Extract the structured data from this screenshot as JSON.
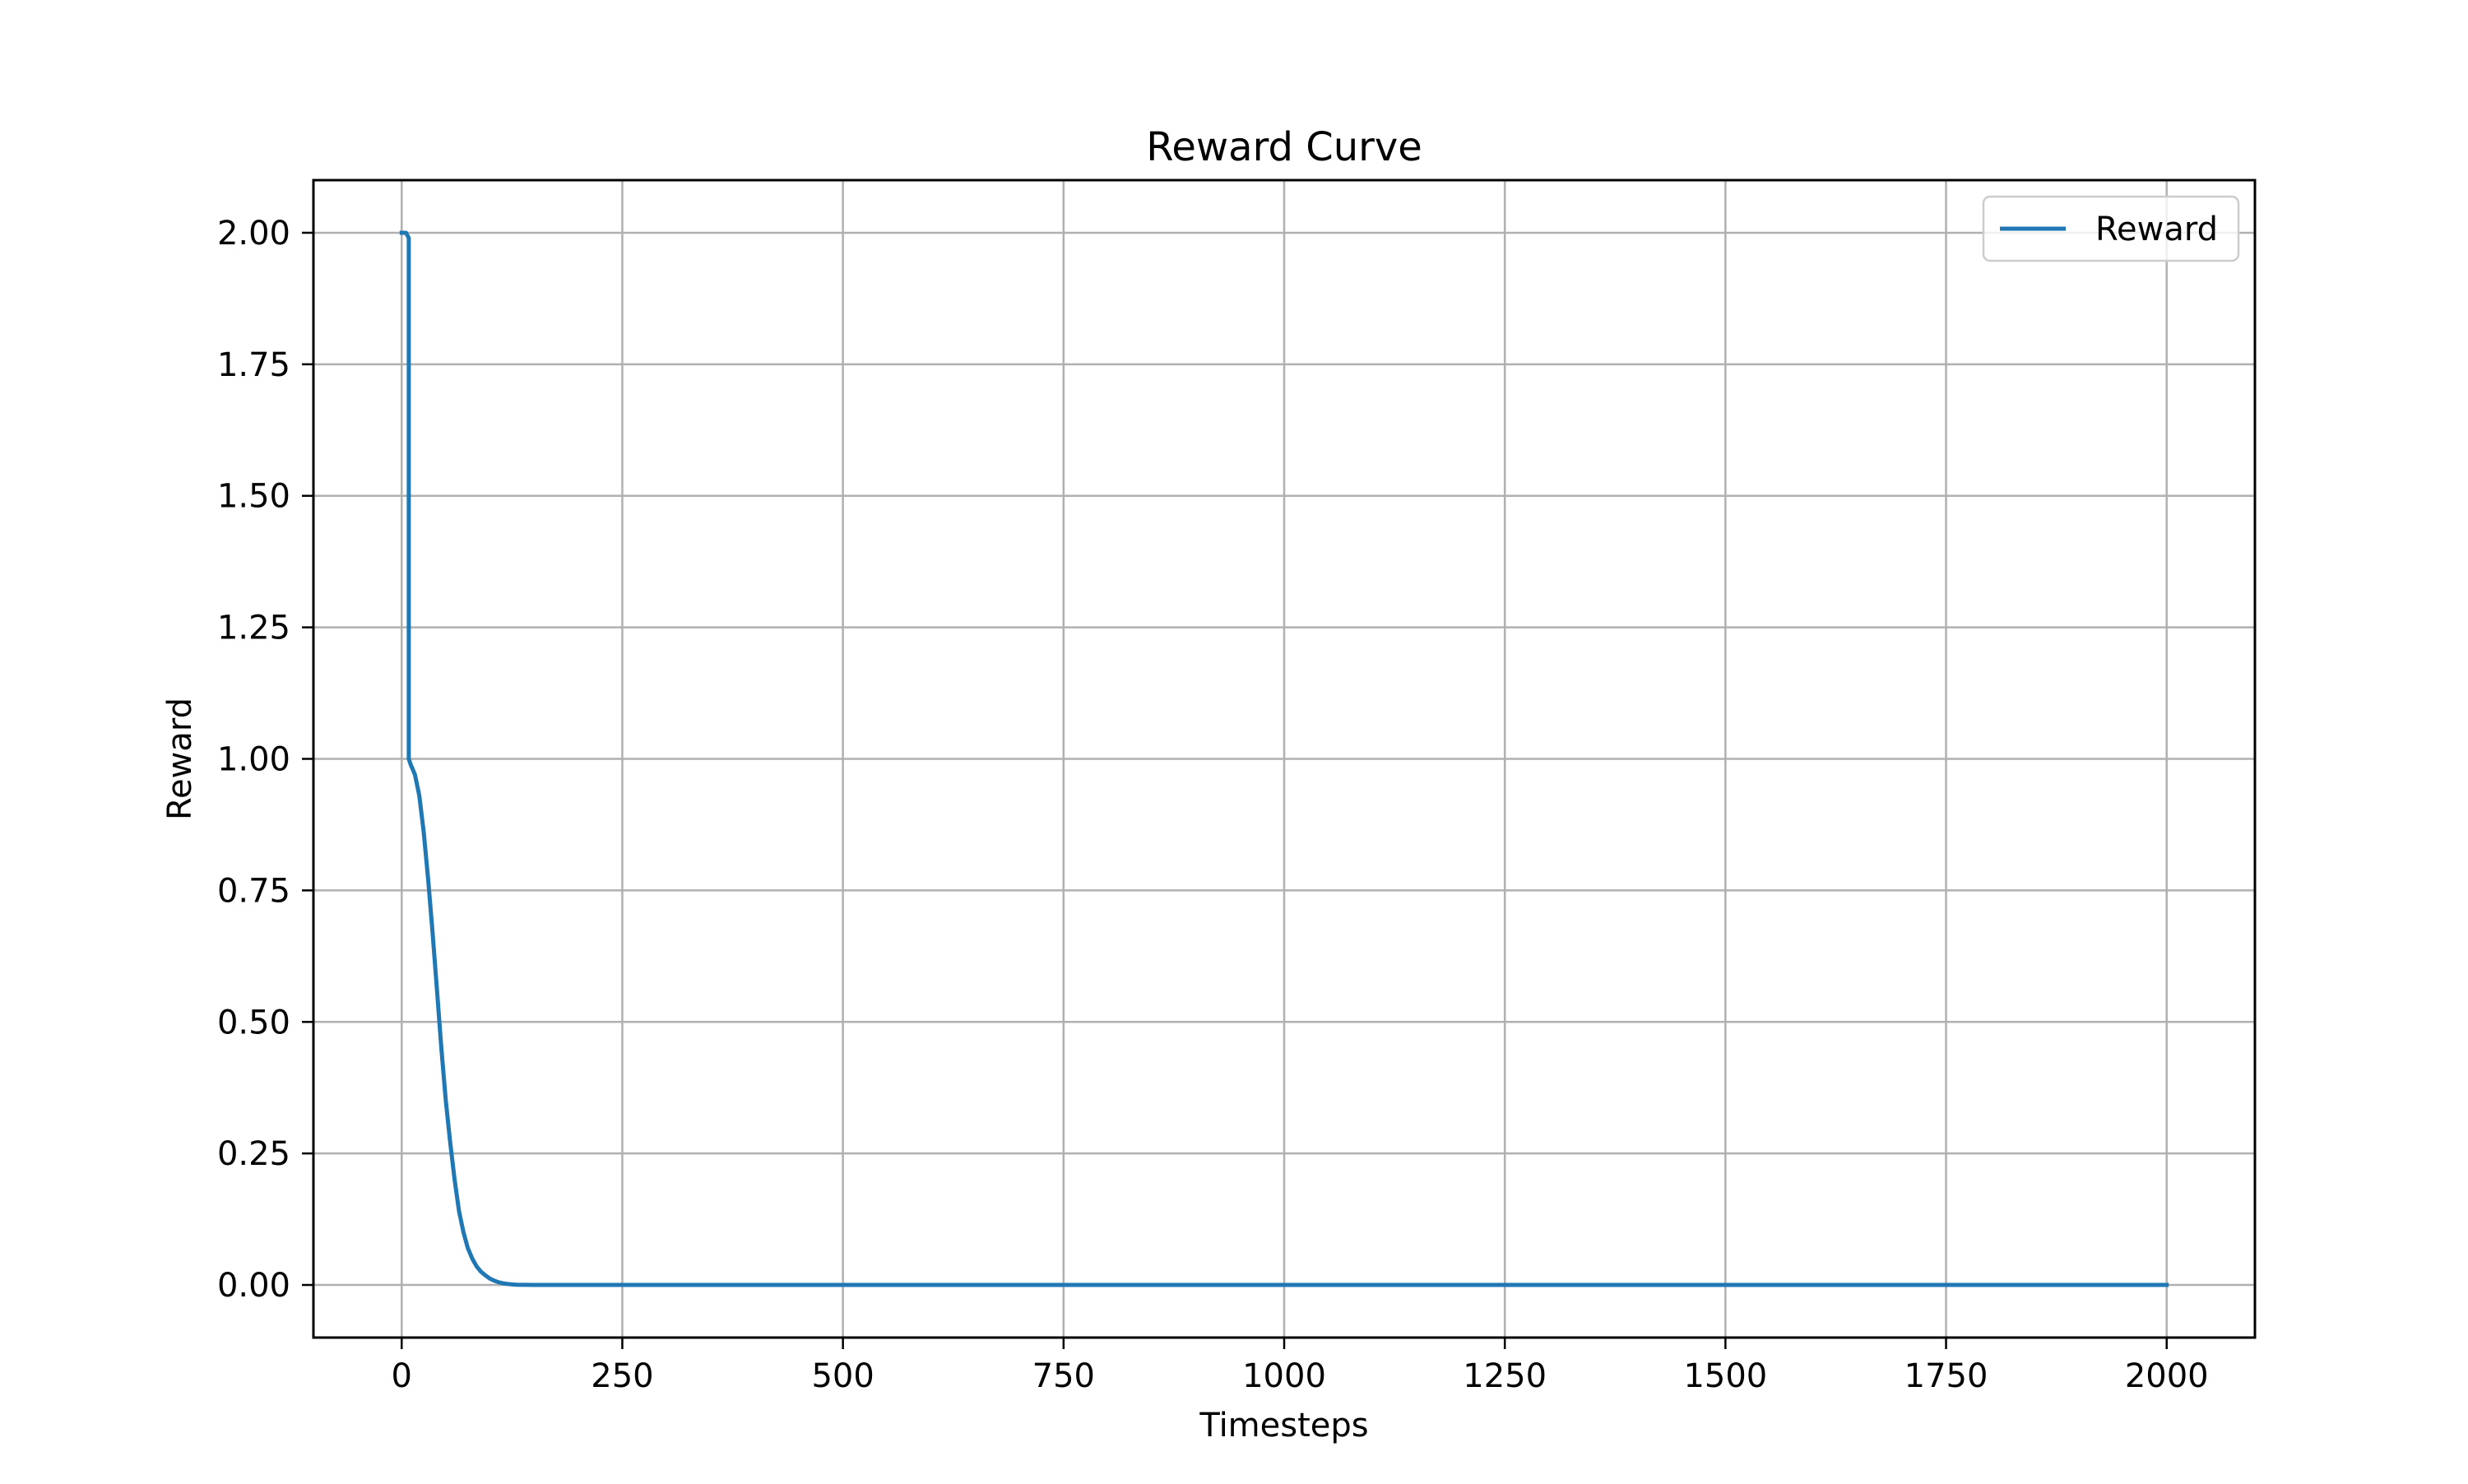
{
  "chart_data": {
    "type": "line",
    "title": "Reward Curve",
    "xlabel": "Timesteps",
    "ylabel": "Reward",
    "xlim": [
      -100,
      2100
    ],
    "ylim": [
      -0.1,
      2.1
    ],
    "xticks": [
      0,
      250,
      500,
      750,
      1000,
      1250,
      1500,
      1750,
      2000
    ],
    "xtick_labels": [
      "0",
      "250",
      "500",
      "750",
      "1000",
      "1250",
      "1500",
      "1750",
      "2000"
    ],
    "yticks": [
      0.0,
      0.25,
      0.5,
      0.75,
      1.0,
      1.25,
      1.5,
      1.75,
      2.0
    ],
    "ytick_labels": [
      "0.00",
      "0.25",
      "0.50",
      "0.75",
      "1.00",
      "1.25",
      "1.50",
      "1.75",
      "2.00"
    ],
    "grid": true,
    "legend_position": "top-right",
    "series": [
      {
        "name": "Reward",
        "color": "#1f77b4",
        "x": [
          0,
          5,
          8,
          8,
          10,
          15,
          20,
          25,
          30,
          35,
          40,
          45,
          50,
          55,
          60,
          65,
          70,
          75,
          80,
          85,
          90,
          95,
          100,
          105,
          110,
          115,
          120,
          125,
          130,
          140,
          150,
          175,
          200,
          300,
          500,
          750,
          1000,
          1250,
          1500,
          1750,
          2000
        ],
        "y": [
          2.0,
          2.0,
          1.99,
          1.0,
          0.99,
          0.97,
          0.93,
          0.86,
          0.77,
          0.67,
          0.56,
          0.45,
          0.35,
          0.27,
          0.2,
          0.14,
          0.1,
          0.07,
          0.05,
          0.035,
          0.025,
          0.018,
          0.012,
          0.008,
          0.005,
          0.003,
          0.002,
          0.001,
          0.0005,
          0.0002,
          0.0001,
          0.0,
          0.0,
          0.0,
          0.0,
          0.0,
          0.0,
          0.0,
          0.0,
          0.0,
          0.0
        ]
      }
    ]
  }
}
